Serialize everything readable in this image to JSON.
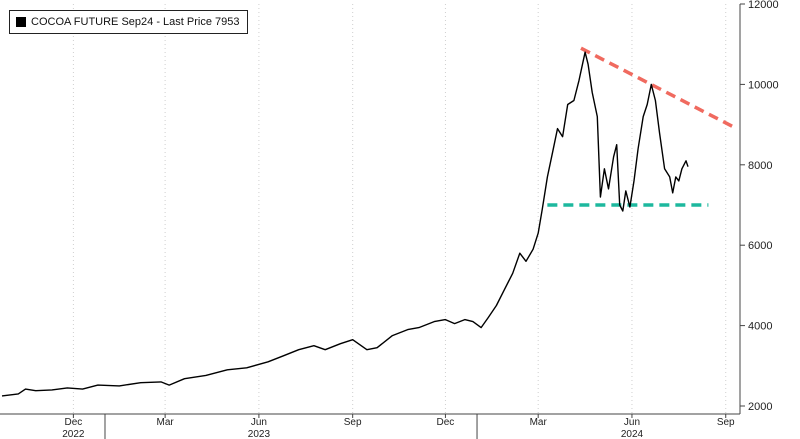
{
  "chart_data": {
    "type": "line",
    "legend": {
      "label": "COCOA FUTURE Sep24 - Last Price 7953",
      "position": "top-left"
    },
    "y_axis": {
      "position": "right",
      "ticks": [
        2000,
        4000,
        6000,
        8000,
        10000,
        12000
      ],
      "ylim": [
        2000,
        12000
      ]
    },
    "x_axis": {
      "month_ticks": [
        {
          "label": "Dec",
          "date": "2022-12-01"
        },
        {
          "label": "Mar",
          "date": "2023-03-01"
        },
        {
          "label": "Jun",
          "date": "2023-06-01"
        },
        {
          "label": "Sep",
          "date": "2023-09-01"
        },
        {
          "label": "Dec",
          "date": "2023-12-01"
        },
        {
          "label": "Mar",
          "date": "2024-03-01"
        },
        {
          "label": "Jun",
          "date": "2024-06-01"
        },
        {
          "label": "Sep",
          "date": "2024-09-01"
        }
      ],
      "year_labels": [
        {
          "label": "2022",
          "date": "2022-12-01"
        },
        {
          "label": "2023",
          "date": "2023-06-01"
        },
        {
          "label": "2024",
          "date": "2024-06-01"
        }
      ],
      "range": [
        "2022-09-20",
        "2024-09-15"
      ]
    },
    "grid": {
      "vertical": true,
      "horizontal": false,
      "style": "dotted"
    },
    "series": [
      {
        "color": "#000000",
        "points": [
          [
            "2022-09-22",
            2250
          ],
          [
            "2022-10-08",
            2300
          ],
          [
            "2022-10-15",
            2420
          ],
          [
            "2022-10-25",
            2380
          ],
          [
            "2022-11-10",
            2400
          ],
          [
            "2022-11-25",
            2450
          ],
          [
            "2022-12-10",
            2420
          ],
          [
            "2022-12-25",
            2520
          ],
          [
            "2023-01-15",
            2500
          ],
          [
            "2023-02-05",
            2580
          ],
          [
            "2023-02-25",
            2600
          ],
          [
            "2023-03-05",
            2520
          ],
          [
            "2023-03-20",
            2680
          ],
          [
            "2023-04-10",
            2760
          ],
          [
            "2023-05-01",
            2900
          ],
          [
            "2023-05-20",
            2950
          ],
          [
            "2023-06-10",
            3100
          ],
          [
            "2023-06-25",
            3250
          ],
          [
            "2023-07-10",
            3400
          ],
          [
            "2023-07-25",
            3500
          ],
          [
            "2023-08-05",
            3400
          ],
          [
            "2023-08-20",
            3550
          ],
          [
            "2023-09-01",
            3650
          ],
          [
            "2023-09-15",
            3400
          ],
          [
            "2023-09-25",
            3450
          ],
          [
            "2023-10-10",
            3750
          ],
          [
            "2023-10-25",
            3900
          ],
          [
            "2023-11-05",
            3950
          ],
          [
            "2023-11-20",
            4100
          ],
          [
            "2023-12-01",
            4150
          ],
          [
            "2023-12-10",
            4050
          ],
          [
            "2023-12-20",
            4150
          ],
          [
            "2023-12-28",
            4100
          ],
          [
            "2024-01-05",
            3950
          ],
          [
            "2024-01-12",
            4200
          ],
          [
            "2024-01-20",
            4500
          ],
          [
            "2024-01-28",
            4900
          ],
          [
            "2024-02-05",
            5300
          ],
          [
            "2024-02-12",
            5800
          ],
          [
            "2024-02-18",
            5600
          ],
          [
            "2024-02-25",
            5900
          ],
          [
            "2024-03-01",
            6300
          ],
          [
            "2024-03-05",
            6900
          ],
          [
            "2024-03-10",
            7700
          ],
          [
            "2024-03-15",
            8300
          ],
          [
            "2024-03-20",
            8900
          ],
          [
            "2024-03-25",
            8700
          ],
          [
            "2024-03-30",
            9500
          ],
          [
            "2024-04-05",
            9600
          ],
          [
            "2024-04-10",
            10100
          ],
          [
            "2024-04-16",
            10800
          ],
          [
            "2024-04-19",
            10500
          ],
          [
            "2024-04-23",
            9800
          ],
          [
            "2024-04-28",
            9200
          ],
          [
            "2024-05-01",
            7200
          ],
          [
            "2024-05-05",
            7900
          ],
          [
            "2024-05-09",
            7400
          ],
          [
            "2024-05-14",
            8200
          ],
          [
            "2024-05-17",
            8500
          ],
          [
            "2024-05-20",
            7000
          ],
          [
            "2024-05-23",
            6850
          ],
          [
            "2024-05-26",
            7350
          ],
          [
            "2024-05-30",
            6950
          ],
          [
            "2024-06-03",
            7600
          ],
          [
            "2024-06-07",
            8400
          ],
          [
            "2024-06-12",
            9200
          ],
          [
            "2024-06-16",
            9500
          ],
          [
            "2024-06-20",
            10000
          ],
          [
            "2024-06-24",
            9600
          ],
          [
            "2024-06-28",
            8800
          ],
          [
            "2024-07-03",
            7900
          ],
          [
            "2024-07-08",
            7700
          ],
          [
            "2024-07-11",
            7300
          ],
          [
            "2024-07-14",
            7700
          ],
          [
            "2024-07-17",
            7600
          ],
          [
            "2024-07-20",
            7900
          ],
          [
            "2024-07-24",
            8100
          ],
          [
            "2024-07-26",
            7953
          ]
        ]
      }
    ],
    "annotations": [
      {
        "type": "line",
        "style": "dashed",
        "color": "#f06a5f",
        "from": [
          "2024-04-12",
          10900
        ],
        "to": [
          "2024-09-08",
          8950
        ]
      },
      {
        "type": "line",
        "style": "dashed",
        "color": "#1db89e",
        "from": [
          "2024-03-10",
          7000
        ],
        "to": [
          "2024-08-15",
          7000
        ]
      }
    ]
  }
}
